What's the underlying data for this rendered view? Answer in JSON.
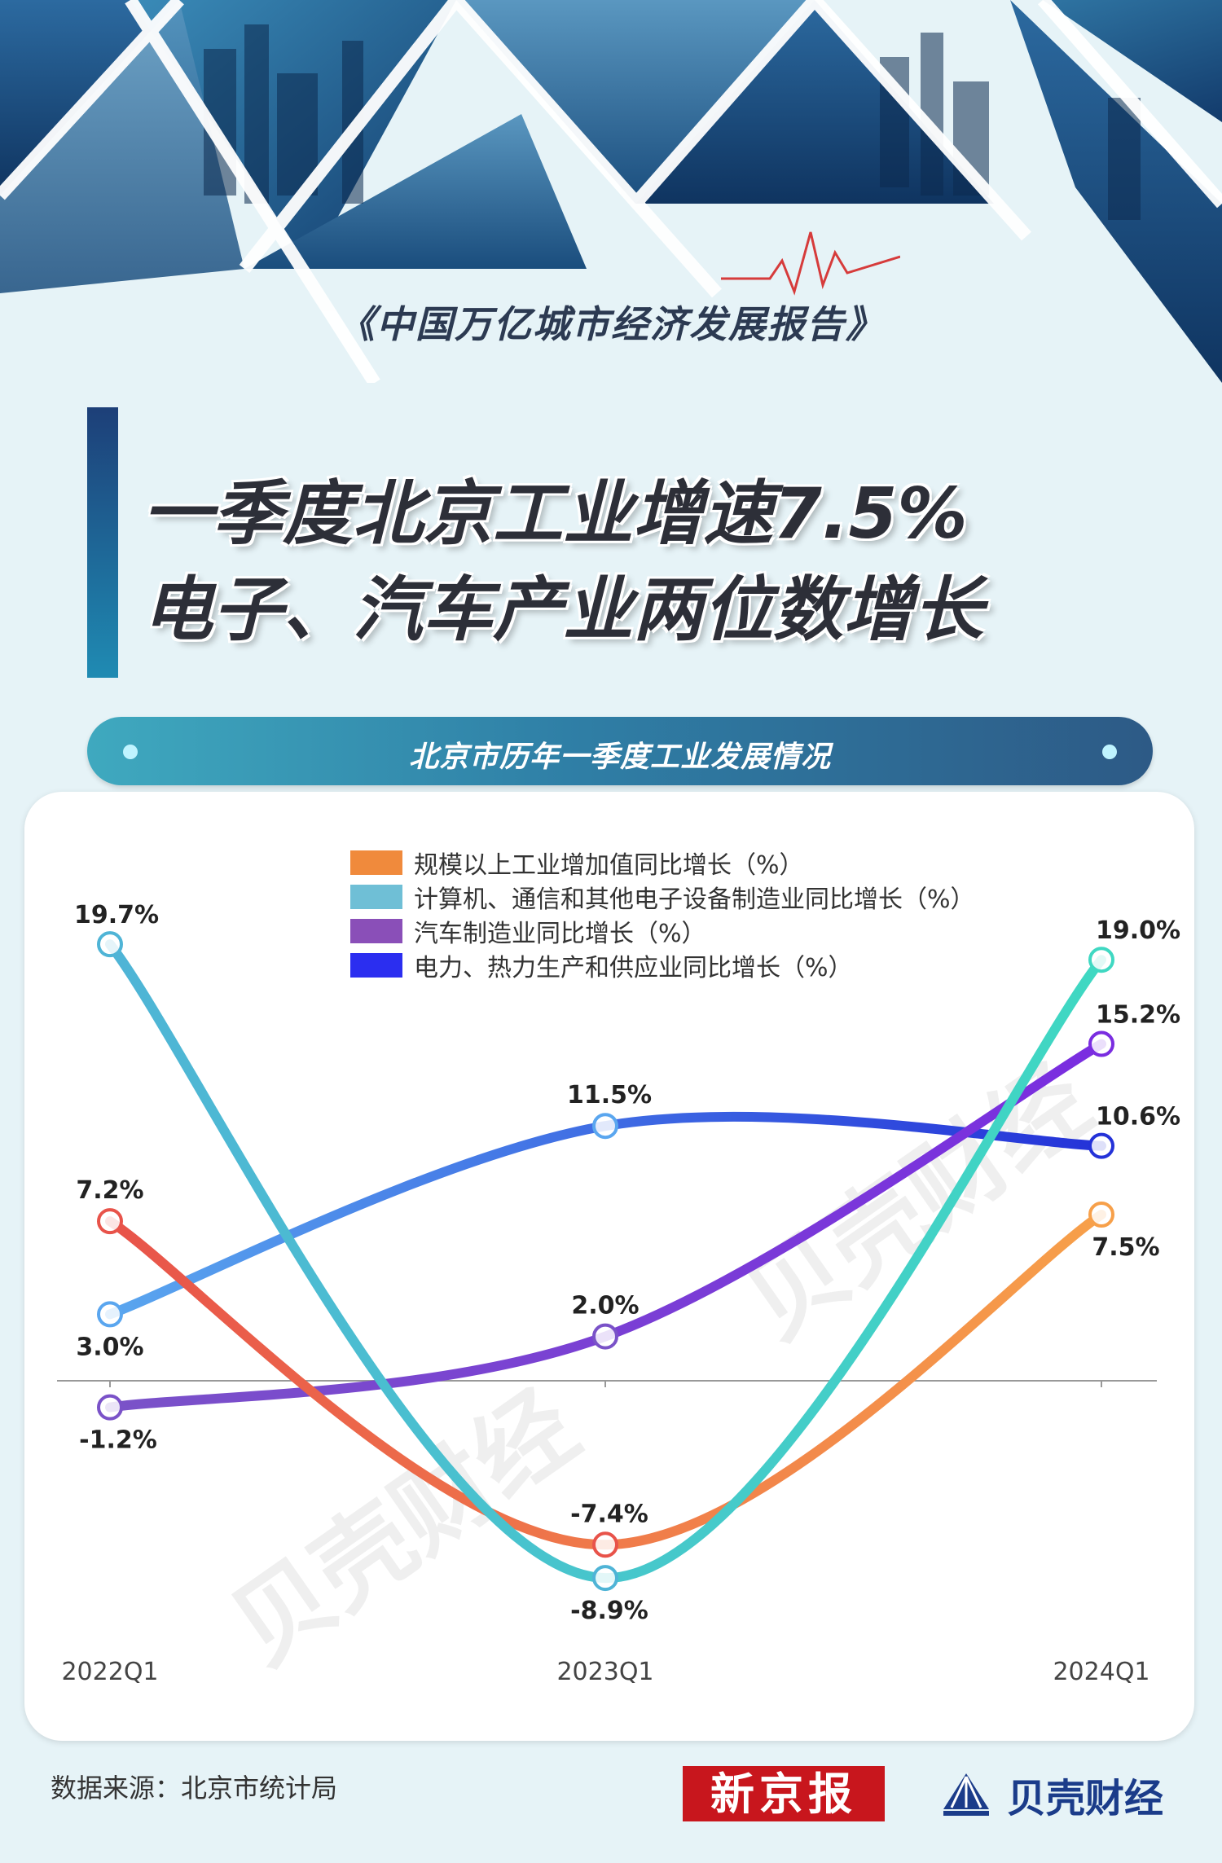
{
  "header": {
    "report_title": "《中国万亿城市经济发展报告》",
    "headline_1": "一季度北京工业增速7.5%",
    "headline_2": "电子、汽车产业两位数增长"
  },
  "section_title": "北京市历年一季度工业发展情况",
  "chart_data": {
    "type": "line",
    "categories": [
      "2022Q1",
      "2023Q1",
      "2024Q1"
    ],
    "series": [
      {
        "name": "规模以上工业增加值同比增长（%）",
        "values": [
          7.2,
          -7.4,
          7.5
        ],
        "labels": [
          "7.2%",
          "-7.4%",
          "7.5%"
        ],
        "color_start": "#e8534a",
        "color_end": "#f7a04a",
        "legend_color": "#f08a3c"
      },
      {
        "name": "计算机、通信和其他电子设备制造业同比增长（%）",
        "values": [
          19.7,
          -8.9,
          19.0
        ],
        "labels": [
          "19.7%",
          "-8.9%",
          "19.0%"
        ],
        "color_start": "#4fb4d6",
        "color_end": "#3fd8c2",
        "legend_color": "#6fbfd6"
      },
      {
        "name": "汽车制造业同比增长（%）",
        "values": [
          -1.2,
          2.0,
          15.2
        ],
        "labels": [
          "-1.2%",
          "2.0%",
          "15.2%"
        ],
        "color_start": "#7a52c8",
        "color_end": "#7a2de0",
        "legend_color": "#8a4fb8"
      },
      {
        "name": "电力、热力生产和供应业同比增长（%）",
        "values": [
          3.0,
          11.5,
          10.6
        ],
        "labels": [
          "3.0%",
          "11.5%",
          "10.6%"
        ],
        "color_start": "#5aa6ef",
        "color_end": "#2432d8",
        "legend_color": "#2b2ef0"
      }
    ],
    "ylim": [
      -12,
      22
    ],
    "grid": false,
    "legend_position": "top"
  },
  "watermark": "贝壳财经",
  "footer": {
    "source": "数据来源：北京市统计局",
    "logo_xjb": "新京报",
    "logo_bk": "贝壳财经"
  }
}
